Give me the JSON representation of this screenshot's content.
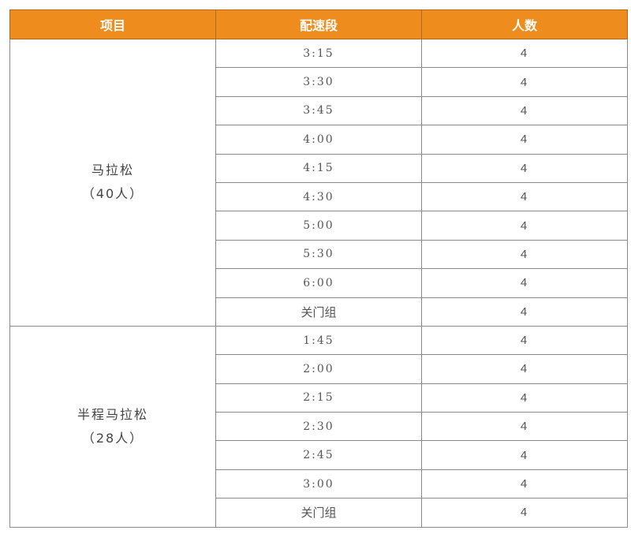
{
  "header": {
    "col1": "项目",
    "col2": "配速段",
    "col3": "人数"
  },
  "header_color": "#ef8c1e",
  "groups": [
    {
      "name": "马拉松",
      "count_label": "（40人）",
      "rows": [
        {
          "pace": "3:15",
          "count": "4"
        },
        {
          "pace": "3:30",
          "count": "4"
        },
        {
          "pace": "3:45",
          "count": "4"
        },
        {
          "pace": "4:00",
          "count": "4"
        },
        {
          "pace": "4:15",
          "count": "4"
        },
        {
          "pace": "4:30",
          "count": "4"
        },
        {
          "pace": "5:00",
          "count": "4"
        },
        {
          "pace": "5:30",
          "count": "4"
        },
        {
          "pace": "6:00",
          "count": "4"
        },
        {
          "pace": "关门组",
          "count": "4"
        }
      ]
    },
    {
      "name": "半程马拉松",
      "count_label": "（28人）",
      "rows": [
        {
          "pace": "1:45",
          "count": "4"
        },
        {
          "pace": "2:00",
          "count": "4"
        },
        {
          "pace": "2:15",
          "count": "4"
        },
        {
          "pace": "2:30",
          "count": "4"
        },
        {
          "pace": "2:45",
          "count": "4"
        },
        {
          "pace": "3:00",
          "count": "4"
        },
        {
          "pace": "关门组",
          "count": "4"
        }
      ]
    }
  ]
}
